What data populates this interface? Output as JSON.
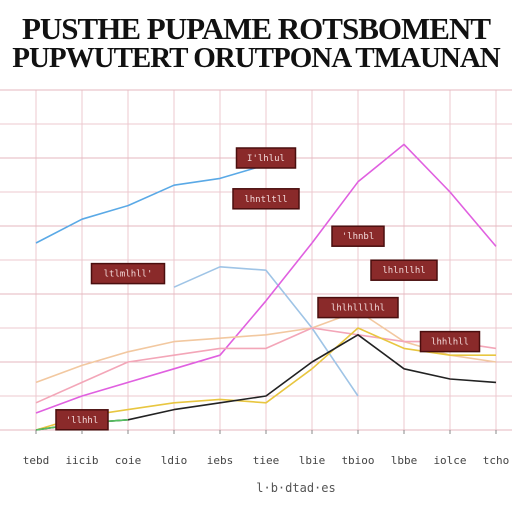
{
  "title": {
    "line1": "PUSTHE PUPAME ROTSBOMENT",
    "line2": "PUPWUTERT ORUTPONA TMAUNAN"
  },
  "colors": {
    "grid": "#ecc9cf",
    "grid_strong": "#e4b7bf",
    "annotation": "#8a2a2a",
    "annotation_border": "#4a0e0e"
  },
  "chart_data": {
    "type": "line",
    "title": "PUSTHE PUPAME ROTSBOMENT PUPWUTERT ORUTPONA TMAUNAN",
    "xlabel": "l·b·dtad·es",
    "ylabel": "",
    "x": [
      "tebd",
      "iicib",
      "coie",
      "ldio",
      "iebs",
      "tiee",
      "lbie",
      "tbioo",
      "lbbe",
      "iolce",
      "tcho"
    ],
    "ylim": [
      0,
      100
    ],
    "grid": true,
    "series": [
      {
        "color": "#5aa9e6",
        "values": [
          55,
          62,
          66,
          72,
          74,
          78,
          null,
          null,
          null,
          null,
          null
        ]
      },
      {
        "color": "#9fc4e6",
        "values": [
          null,
          null,
          null,
          42,
          48,
          47,
          30,
          10,
          null,
          null,
          null
        ]
      },
      {
        "color": "#e060e0",
        "values": [
          5,
          10,
          14,
          18,
          22,
          38,
          55,
          73,
          84,
          70,
          54
        ]
      },
      {
        "color": "#f2c8a0",
        "values": [
          14,
          19,
          23,
          26,
          27,
          28,
          30,
          35,
          26,
          22,
          20
        ]
      },
      {
        "color": "#f3a6b8",
        "values": [
          8,
          14,
          20,
          22,
          24,
          24,
          30,
          28,
          26,
          26,
          24
        ]
      },
      {
        "color": "#e8c640",
        "values": [
          0,
          4,
          6,
          8,
          9,
          8,
          18,
          30,
          24,
          22,
          22
        ]
      },
      {
        "color": "#222222",
        "values": [
          0,
          2,
          3,
          6,
          8,
          10,
          20,
          28,
          18,
          15,
          14
        ]
      },
      {
        "color": "#55c060",
        "values": [
          0,
          2,
          3,
          null,
          null,
          null,
          null,
          null,
          null,
          null,
          null
        ]
      }
    ],
    "annotations": [
      {
        "text": "I'lhlul",
        "x_index": 5,
        "y": 80
      },
      {
        "text": "lhntltll",
        "x_index": 5,
        "y": 68
      },
      {
        "text": "'lhnbl",
        "x_index": 7,
        "y": 57
      },
      {
        "text": "ltlmlhll'",
        "x_index": 2,
        "y": 46
      },
      {
        "text": "lhlnllhl",
        "x_index": 8,
        "y": 47
      },
      {
        "text": "lhlhllllhl",
        "x_index": 7,
        "y": 36
      },
      {
        "text": "lhhlhll",
        "x_index": 9,
        "y": 26
      },
      {
        "text": "'llhhl",
        "x_index": 1,
        "y": 3
      }
    ]
  }
}
